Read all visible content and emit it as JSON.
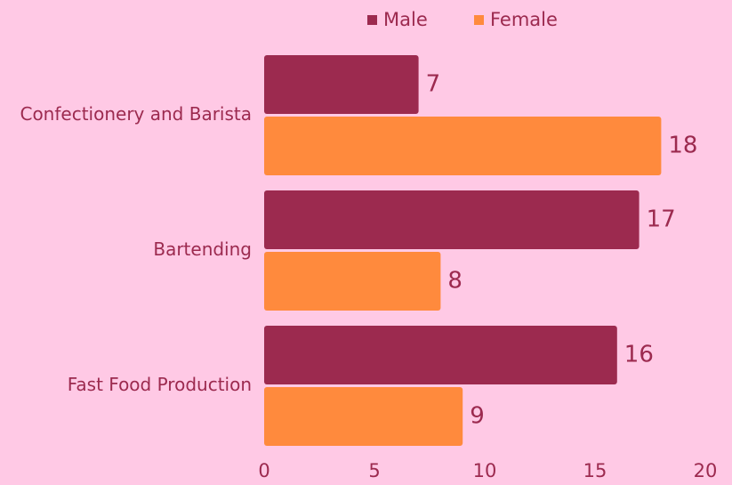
{
  "chart_data": {
    "type": "bar",
    "orientation": "horizontal",
    "categories": [
      "Confectionery and Barista",
      "Bartending",
      "Fast Food Production"
    ],
    "series": [
      {
        "name": "Male",
        "color": "#9c2a4f",
        "values": [
          7,
          17,
          16
        ]
      },
      {
        "name": "Female",
        "color": "#ff8a3d",
        "values": [
          18,
          8,
          9
        ]
      }
    ],
    "xlim": [
      0,
      20
    ],
    "xticks": [
      0,
      5,
      10,
      15,
      20
    ],
    "legend": "top"
  }
}
